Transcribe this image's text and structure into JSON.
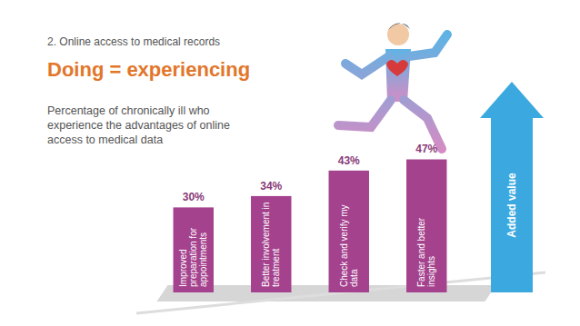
{
  "chart_data": {
    "type": "bar",
    "title": "Doing = experiencing",
    "subtitle": "Percentage of chronically ill who experience the advantages of online access to medical data",
    "annotations": [
      "2. Online access to medical records",
      "Added value"
    ],
    "categories": [
      "Improved preparation for appointments",
      "Better involvement in treatment",
      "Check and verify my data",
      "Faster and better insights"
    ],
    "values": [
      30,
      34,
      43,
      47
    ],
    "value_labels": [
      "30%",
      "34%",
      "43%",
      "47%"
    ],
    "color": "#a4428e",
    "data_labels": true,
    "tick_labels": false
  }
}
